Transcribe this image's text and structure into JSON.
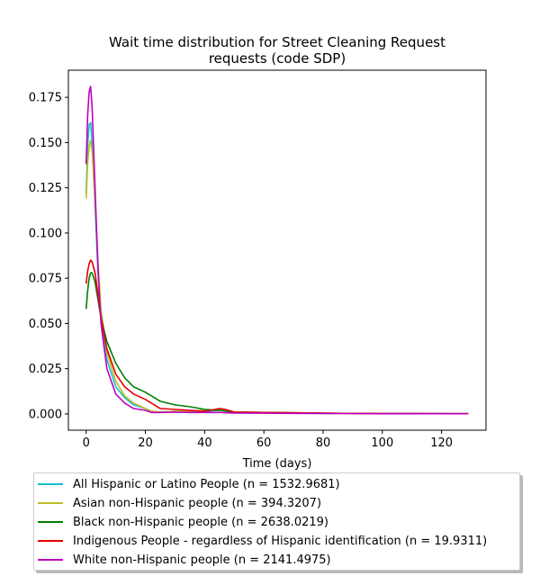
{
  "chart_data": {
    "type": "line",
    "title_line1": "Wait time distribution  for Street Cleaning Request",
    "title_line2": "requests (code SDP)",
    "xlabel": "Time (days)",
    "ylabel": "",
    "xlim": [
      -6,
      135
    ],
    "ylim": [
      -0.009,
      0.19
    ],
    "xticks": [
      0,
      20,
      40,
      60,
      80,
      100,
      120
    ],
    "yticks": [
      0.0,
      0.025,
      0.05,
      0.075,
      0.1,
      0.125,
      0.15,
      0.175
    ],
    "ytick_labels": [
      "0.000",
      "0.025",
      "0.050",
      "0.075",
      "0.100",
      "0.125",
      "0.150",
      "0.175"
    ],
    "grid": false,
    "legend_position": "below",
    "series": [
      {
        "name": "All Hispanic or Latino People (n = 1532.9681)",
        "color": "#17becf",
        "points": [
          [
            0,
            0.122
          ],
          [
            0.5,
            0.148
          ],
          [
            1,
            0.16
          ],
          [
            1.5,
            0.161
          ],
          [
            2,
            0.15
          ],
          [
            3,
            0.115
          ],
          [
            4,
            0.078
          ],
          [
            5,
            0.052
          ],
          [
            7,
            0.03
          ],
          [
            10,
            0.015
          ],
          [
            13,
            0.009
          ],
          [
            16,
            0.005
          ],
          [
            20,
            0.003
          ],
          [
            22,
            0.0015
          ],
          [
            25,
            0.001
          ],
          [
            30,
            0.0015
          ],
          [
            35,
            0.001
          ],
          [
            40,
            0.0015
          ],
          [
            45,
            0.002
          ],
          [
            50,
            0.001
          ],
          [
            60,
            0.0008
          ],
          [
            70,
            0.0006
          ],
          [
            80,
            0.0003
          ],
          [
            90,
            0.0003
          ],
          [
            100,
            0.0002
          ],
          [
            110,
            0.0002
          ],
          [
            120,
            0.0001
          ],
          [
            129,
            0.0001
          ]
        ]
      },
      {
        "name": "Asian non-Hispanic people (n = 394.3207)",
        "color": "#bcbd22",
        "points": [
          [
            0,
            0.119
          ],
          [
            0.5,
            0.138
          ],
          [
            1,
            0.148
          ],
          [
            1.5,
            0.151
          ],
          [
            2,
            0.145
          ],
          [
            3,
            0.118
          ],
          [
            4,
            0.084
          ],
          [
            5,
            0.058
          ],
          [
            7,
            0.034
          ],
          [
            10,
            0.018
          ],
          [
            13,
            0.01
          ],
          [
            16,
            0.006
          ],
          [
            20,
            0.003
          ],
          [
            22,
            0.0015
          ],
          [
            25,
            0.001
          ],
          [
            30,
            0.0015
          ],
          [
            35,
            0.0015
          ],
          [
            40,
            0.002
          ],
          [
            45,
            0.0025
          ],
          [
            50,
            0.001
          ],
          [
            60,
            0.0008
          ],
          [
            70,
            0.0006
          ],
          [
            80,
            0.0003
          ],
          [
            90,
            0.0003
          ],
          [
            100,
            0.0002
          ],
          [
            110,
            0.0002
          ],
          [
            120,
            0.0001
          ],
          [
            129,
            0.0001
          ]
        ]
      },
      {
        "name": "Black non-Hispanic people (n = 2638.0219)",
        "color": "#008000",
        "points": [
          [
            0,
            0.058
          ],
          [
            0.5,
            0.068
          ],
          [
            1,
            0.075
          ],
          [
            1.5,
            0.078
          ],
          [
            2,
            0.078
          ],
          [
            3,
            0.073
          ],
          [
            4,
            0.063
          ],
          [
            5,
            0.053
          ],
          [
            7,
            0.04
          ],
          [
            10,
            0.028
          ],
          [
            13,
            0.02
          ],
          [
            16,
            0.015
          ],
          [
            20,
            0.012
          ],
          [
            22,
            0.01
          ],
          [
            25,
            0.007
          ],
          [
            30,
            0.005
          ],
          [
            35,
            0.004
          ],
          [
            40,
            0.0025
          ],
          [
            45,
            0.002
          ],
          [
            50,
            0.001
          ],
          [
            60,
            0.0008
          ],
          [
            70,
            0.0006
          ],
          [
            80,
            0.0004
          ],
          [
            90,
            0.0003
          ],
          [
            100,
            0.0002
          ],
          [
            110,
            0.0002
          ],
          [
            120,
            0.0001
          ],
          [
            129,
            0.0001
          ]
        ]
      },
      {
        "name": "Indigenous People - regardless of Hispanic identification (n = 19.9311)",
        "color": "#e60000",
        "points": [
          [
            0,
            0.072
          ],
          [
            0.5,
            0.079
          ],
          [
            1,
            0.083
          ],
          [
            1.5,
            0.085
          ],
          [
            2,
            0.084
          ],
          [
            3,
            0.078
          ],
          [
            4,
            0.066
          ],
          [
            5,
            0.053
          ],
          [
            7,
            0.036
          ],
          [
            10,
            0.022
          ],
          [
            13,
            0.015
          ],
          [
            16,
            0.011
          ],
          [
            20,
            0.008
          ],
          [
            22,
            0.006
          ],
          [
            25,
            0.003
          ],
          [
            30,
            0.0025
          ],
          [
            35,
            0.002
          ],
          [
            40,
            0.0015
          ],
          [
            42,
            0.002
          ],
          [
            45,
            0.003
          ],
          [
            47,
            0.0025
          ],
          [
            50,
            0.001
          ],
          [
            60,
            0.0008
          ],
          [
            70,
            0.0006
          ],
          [
            80,
            0.0004
          ],
          [
            90,
            0.0003
          ],
          [
            100,
            0.0002
          ],
          [
            110,
            0.0002
          ],
          [
            120,
            0.0001
          ],
          [
            129,
            0.0001
          ]
        ]
      },
      {
        "name": "White non-Hispanic people (n = 2141.4975)",
        "color": "#bf00bf",
        "points": [
          [
            0,
            0.138
          ],
          [
            0.5,
            0.165
          ],
          [
            1,
            0.178
          ],
          [
            1.5,
            0.181
          ],
          [
            2,
            0.17
          ],
          [
            3,
            0.125
          ],
          [
            4,
            0.08
          ],
          [
            5,
            0.05
          ],
          [
            7,
            0.025
          ],
          [
            10,
            0.011
          ],
          [
            13,
            0.006
          ],
          [
            16,
            0.003
          ],
          [
            20,
            0.002
          ],
          [
            22,
            0.0008
          ],
          [
            25,
            0.0008
          ],
          [
            30,
            0.001
          ],
          [
            35,
            0.0008
          ],
          [
            40,
            0.0008
          ],
          [
            45,
            0.0008
          ],
          [
            50,
            0.0005
          ],
          [
            60,
            0.0004
          ],
          [
            70,
            0.0003
          ],
          [
            80,
            0.0002
          ],
          [
            90,
            0.0002
          ],
          [
            100,
            0.0001
          ],
          [
            110,
            0.0001
          ],
          [
            120,
            0.0001
          ],
          [
            129,
            0.0001
          ]
        ]
      }
    ]
  }
}
